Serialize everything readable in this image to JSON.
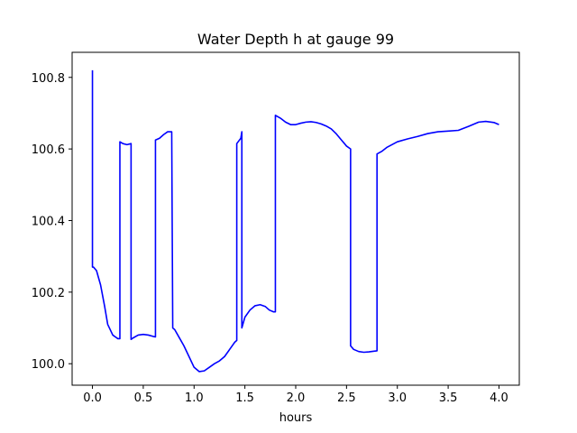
{
  "chart_data": {
    "type": "line",
    "title": "Water Depth h at gauge 99",
    "xlabel": "hours",
    "ylabel": "",
    "xlim": [
      -0.2,
      4.2
    ],
    "ylim": [
      99.94,
      100.87
    ],
    "xticks": [
      0.0,
      0.5,
      1.0,
      1.5,
      2.0,
      2.5,
      3.0,
      3.5,
      4.0
    ],
    "xtick_labels": [
      "0.0",
      "0.5",
      "1.0",
      "1.5",
      "2.0",
      "2.5",
      "3.0",
      "3.5",
      "4.0"
    ],
    "yticks": [
      100.0,
      100.2,
      100.4,
      100.6,
      100.8
    ],
    "ytick_labels": [
      "100.0",
      "100.2",
      "100.4",
      "100.6",
      "100.8"
    ],
    "grid": false,
    "series": [
      {
        "color": "#0000ff",
        "x": [
          0.0,
          0.0,
          0.01,
          0.04,
          0.08,
          0.12,
          0.15,
          0.2,
          0.25,
          0.27,
          0.27,
          0.3,
          0.34,
          0.38,
          0.38,
          0.4,
          0.45,
          0.5,
          0.55,
          0.6,
          0.62,
          0.62,
          0.66,
          0.7,
          0.74,
          0.78,
          0.79,
          0.81,
          0.85,
          0.9,
          0.95,
          1.0,
          1.05,
          1.1,
          1.15,
          1.2,
          1.25,
          1.3,
          1.35,
          1.4,
          1.42,
          1.42,
          1.46,
          1.47,
          1.47,
          1.5,
          1.55,
          1.6,
          1.65,
          1.7,
          1.74,
          1.78,
          1.8,
          1.8,
          1.85,
          1.9,
          1.95,
          2.0,
          2.05,
          2.1,
          2.15,
          2.2,
          2.25,
          2.3,
          2.35,
          2.4,
          2.45,
          2.5,
          2.54,
          2.54,
          2.57,
          2.62,
          2.67,
          2.72,
          2.77,
          2.8,
          2.8,
          2.85,
          2.9,
          3.0,
          3.1,
          3.2,
          3.3,
          3.4,
          3.5,
          3.6,
          3.7,
          3.8,
          3.87,
          3.95,
          4.0
        ],
        "y": [
          100.82,
          100.27,
          100.27,
          100.26,
          100.22,
          100.16,
          100.11,
          100.08,
          100.07,
          100.07,
          100.62,
          100.615,
          100.612,
          100.615,
          100.068,
          100.072,
          100.08,
          100.082,
          100.08,
          100.076,
          100.075,
          100.625,
          100.63,
          100.64,
          100.648,
          100.648,
          100.1,
          100.095,
          100.075,
          100.05,
          100.02,
          99.99,
          99.978,
          99.98,
          99.99,
          100.0,
          100.008,
          100.02,
          100.04,
          100.06,
          100.065,
          100.615,
          100.63,
          100.648,
          100.1,
          100.13,
          100.15,
          100.162,
          100.165,
          100.16,
          100.15,
          100.145,
          100.145,
          100.694,
          100.686,
          100.675,
          100.668,
          100.668,
          100.672,
          100.675,
          100.676,
          100.674,
          100.67,
          100.664,
          100.656,
          100.642,
          100.625,
          100.608,
          100.6,
          100.05,
          100.04,
          100.034,
          100.032,
          100.033,
          100.035,
          100.036,
          100.586,
          100.594,
          100.605,
          100.62,
          100.628,
          100.635,
          100.643,
          100.648,
          100.65,
          100.652,
          100.663,
          100.675,
          100.677,
          100.674,
          100.668
        ]
      }
    ]
  }
}
